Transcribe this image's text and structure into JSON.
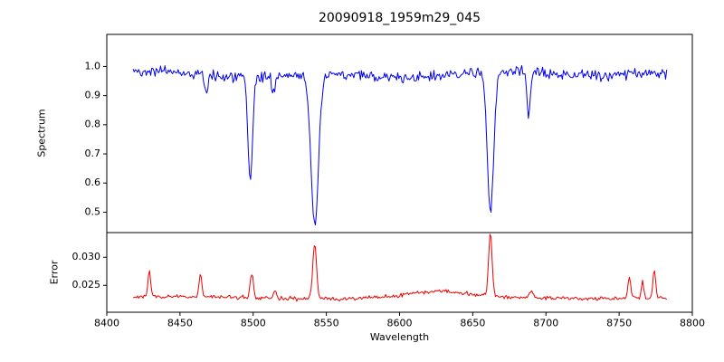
{
  "chart_data": {
    "type": "line",
    "title": "20090918_1959m29_045",
    "xlabel": "Wavelength",
    "xlim": [
      8400,
      8800
    ],
    "xticks": [
      8400,
      8450,
      8500,
      8550,
      8600,
      8650,
      8700,
      8750,
      8800
    ],
    "x_sample_start": 8418,
    "x_sample_end": 8783,
    "x_sample_step": 0.75,
    "legend": "none",
    "grid": false,
    "panels": [
      {
        "name": "spectrum",
        "ylabel": "Spectrum",
        "line_color": "#0000ee",
        "ylim": [
          0.43,
          1.11
        ],
        "yticks": [
          0.5,
          0.6,
          0.7,
          0.8,
          0.9,
          1.0
        ],
        "ytick_labels": [
          "0.5",
          "0.6",
          "0.7",
          "0.8",
          "0.9",
          "1.0"
        ],
        "continuum": 0.972,
        "noise_amplitude": 0.018,
        "absorption_lines": [
          {
            "center": 8468.0,
            "depth": 0.08,
            "sigma": 1.0
          },
          {
            "center": 8498.0,
            "depth": 0.36,
            "sigma": 1.6
          },
          {
            "center": 8514.0,
            "depth": 0.06,
            "sigma": 1.0
          },
          {
            "center": 8542.1,
            "depth": 0.52,
            "sigma": 2.6
          },
          {
            "center": 8662.1,
            "depth": 0.48,
            "sigma": 2.2
          },
          {
            "center": 8688.0,
            "depth": 0.15,
            "sigma": 1.2
          }
        ]
      },
      {
        "name": "error",
        "ylabel": "Error",
        "line_color": "#ee0000",
        "ylim": [
          0.0202,
          0.0344
        ],
        "yticks": [
          0.025,
          0.03
        ],
        "ytick_labels": [
          "0.025",
          "0.030"
        ],
        "baseline": 0.0228,
        "noise_amplitude": 0.00035,
        "peaks": [
          {
            "center": 8429,
            "height": 0.0047,
            "sigma": 0.9
          },
          {
            "center": 8464,
            "height": 0.004,
            "sigma": 0.9
          },
          {
            "center": 8499,
            "height": 0.0044,
            "sigma": 1.1
          },
          {
            "center": 8515,
            "height": 0.0016,
            "sigma": 0.9
          },
          {
            "center": 8542,
            "height": 0.0098,
            "sigma": 1.3
          },
          {
            "center": 8625,
            "height": 0.001,
            "sigma": 18.0
          },
          {
            "center": 8662,
            "height": 0.0112,
            "sigma": 1.2
          },
          {
            "center": 8690,
            "height": 0.0014,
            "sigma": 1.0
          },
          {
            "center": 8757,
            "height": 0.004,
            "sigma": 1.0
          },
          {
            "center": 8766,
            "height": 0.003,
            "sigma": 0.8
          },
          {
            "center": 8774,
            "height": 0.0052,
            "sigma": 0.9
          }
        ]
      }
    ]
  }
}
